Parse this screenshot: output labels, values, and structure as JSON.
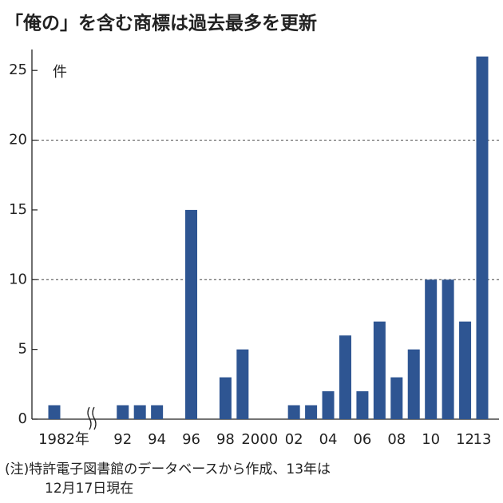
{
  "chart_data": {
    "type": "bar",
    "title": "「俺の」を含む商標は過去最多を更新",
    "unit": "件",
    "categories": [
      "1982年",
      null,
      null,
      null,
      "92",
      null,
      "94",
      null,
      "96",
      null,
      "98",
      null,
      "2000",
      null,
      "02",
      null,
      "04",
      null,
      "06",
      null,
      "08",
      null,
      "10",
      null,
      "12",
      "13"
    ],
    "values": [
      1,
      null,
      null,
      null,
      1,
      1,
      1,
      0,
      15,
      0,
      3,
      5,
      0,
      0,
      1,
      1,
      2,
      6,
      2,
      7,
      3,
      5,
      10,
      10,
      7,
      26
    ],
    "color": "#2e5592",
    "ylim": [
      0,
      26.5
    ],
    "yticks": [
      0,
      5,
      10,
      15,
      20,
      25
    ],
    "grid_lines": [
      10,
      20
    ],
    "note": [
      "(注)特許電子図書館のデータベースから作成、13年は",
      "12月17日現在"
    ]
  }
}
